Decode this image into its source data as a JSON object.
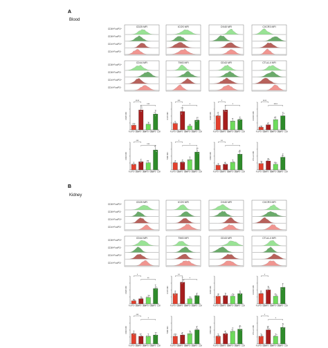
{
  "panels": [
    {
      "letter": "A",
      "tissue": "Blood",
      "rows": [
        "CD8⁺FoxP3⁺",
        "CD8⁺FoxP3⁻",
        "CD4⁺FoxP3⁺",
        "CD4⁺FoxP3⁻"
      ],
      "histograms": [
        "CD25 MFI",
        "ICOS MFI",
        "OX40 MFI",
        "CXCR3 MFI",
        "CD44 MFI",
        "TIM3 MFI",
        "CD43 MFI",
        "CTLA-4 MFI"
      ],
      "bar_plots": [
        {
          "ylabel": "CD25 MFI",
          "sig": [
            "****",
            "***"
          ]
        },
        {
          "ylabel": "ICOS MFI",
          "sig": [
            "***",
            "*"
          ]
        },
        {
          "ylabel": "OX40 MFI",
          "sig": [
            "*",
            "*"
          ]
        },
        {
          "ylabel": "CXCR3 MFI",
          "sig": [
            "****",
            "****"
          ]
        },
        {
          "ylabel": "CD44 MFI",
          "sig": [
            "***",
            "***"
          ]
        },
        {
          "ylabel": "TIM3 MFI",
          "sig": [
            "*",
            "*"
          ]
        },
        {
          "ylabel": "CD43 MFI",
          "sig": [
            "**",
            "*"
          ]
        },
        {
          "ylabel": "CTLA-4 MFI",
          "sig": []
        }
      ]
    },
    {
      "letter": "B",
      "tissue": "Kidney",
      "rows": [
        "CD8⁺FoxP3⁺",
        "CD8⁺FoxP3⁻",
        "CD4⁺FoxP3⁺",
        "CD4⁺FoxP3⁻"
      ],
      "histograms": [
        "CD25 MFI",
        "ICOS MFI",
        "OX40 MFI",
        "CXCR3 MFI",
        "CD44 MFI",
        "TIM3 MFI",
        "CD43 MFI",
        "CTLA-4 MFI"
      ],
      "bar_plots": [
        {
          "ylabel": "CD25 MFI",
          "sig": [
            "*",
            "**"
          ]
        },
        {
          "ylabel": "ICOS MFI",
          "sig": [
            "**",
            "*"
          ]
        },
        {
          "ylabel": "OX40 MFI",
          "sig": []
        },
        {
          "ylabel": "CXCR3 MFI",
          "sig": [
            "*"
          ]
        },
        {
          "ylabel": "CD44 MFI",
          "sig": [
            "***",
            "*"
          ]
        },
        {
          "ylabel": "TIM3 MFI",
          "sig": []
        },
        {
          "ylabel": "CD43 MFI",
          "sig": []
        },
        {
          "ylabel": "CTLA-4 MFI",
          "sig": [
            "*",
            "*"
          ]
        }
      ]
    }
  ],
  "group_labels": [
    "FoxP3+ CD4",
    "FoxP3- CD4",
    "FoxP3+ CD8",
    "FoxP3- CD8"
  ],
  "colors": {
    "cd4_pos": "#e3402d",
    "cd4_neg": "#a61d1d",
    "cd8_pos": "#6ddc5a",
    "cd8_neg": "#2e8b2a",
    "hist_red": "#f08a84",
    "hist_green": "#8fe08a",
    "hist_darkred": "#b0504a",
    "hist_darkgreen": "#5aa35a"
  },
  "chart_data": [
    {
      "type": "bar",
      "panel": "A",
      "ylabel": "CD25 MFI",
      "categories": [
        "FoxP3+ CD4",
        "FoxP3- CD4",
        "FoxP3+ CD8",
        "FoxP3- CD8"
      ],
      "values": [
        0.18,
        0.78,
        0.22,
        0.62
      ]
    },
    {
      "type": "bar",
      "panel": "A",
      "ylabel": "ICOS MFI",
      "categories": [
        "FoxP3+ CD4",
        "FoxP3- CD4",
        "FoxP3+ CD8",
        "FoxP3- CD8"
      ],
      "values": [
        0.25,
        0.72,
        0.15,
        0.38
      ]
    },
    {
      "type": "bar",
      "panel": "A",
      "ylabel": "OX40 MFI",
      "categories": [
        "FoxP3+ CD4",
        "FoxP3- CD4",
        "FoxP3+ CD8",
        "FoxP3- CD8"
      ],
      "values": [
        0.55,
        0.78,
        0.35,
        0.4
      ]
    },
    {
      "type": "bar",
      "panel": "A",
      "ylabel": "CXCR3 MFI",
      "categories": [
        "FoxP3+ CD4",
        "FoxP3- CD4",
        "FoxP3+ CD8",
        "FoxP3- CD8"
      ],
      "values": [
        0.1,
        0.2,
        0.4,
        0.55
      ]
    },
    {
      "type": "bar",
      "panel": "A",
      "ylabel": "CD44 MFI",
      "categories": [
        "FoxP3+ CD4",
        "FoxP3- CD4",
        "FoxP3+ CD8",
        "FoxP3- CD8"
      ],
      "values": [
        0.22,
        0.32,
        0.28,
        0.78
      ]
    },
    {
      "type": "bar",
      "panel": "A",
      "ylabel": "TIM3 MFI",
      "categories": [
        "FoxP3+ CD4",
        "FoxP3- CD4",
        "FoxP3+ CD8",
        "FoxP3- CD8"
      ],
      "values": [
        0.28,
        0.3,
        0.4,
        0.7
      ]
    },
    {
      "type": "bar",
      "panel": "A",
      "ylabel": "CD43 MFI",
      "categories": [
        "FoxP3+ CD4",
        "FoxP3- CD4",
        "FoxP3+ CD8",
        "FoxP3- CD8"
      ],
      "values": [
        0.18,
        0.22,
        0.3,
        0.62
      ]
    },
    {
      "type": "bar",
      "panel": "A",
      "ylabel": "CTLA-4 MFI",
      "categories": [
        "FoxP3+ CD4",
        "FoxP3- CD4",
        "FoxP3+ CD8",
        "FoxP3- CD8"
      ],
      "values": [
        0.25,
        0.35,
        0.22,
        0.5
      ]
    },
    {
      "type": "bar",
      "panel": "B",
      "ylabel": "CD25 MFI",
      "categories": [
        "FoxP3+ CD4",
        "FoxP3- CD4",
        "FoxP3+ CD8",
        "FoxP3- CD8"
      ],
      "values": [
        0.12,
        0.2,
        0.25,
        0.6
      ]
    },
    {
      "type": "bar",
      "panel": "B",
      "ylabel": "ICOS MFI",
      "categories": [
        "FoxP3+ CD4",
        "FoxP3- CD4",
        "FoxP3+ CD8",
        "FoxP3- CD8"
      ],
      "values": [
        0.4,
        0.85,
        0.2,
        0.32
      ]
    },
    {
      "type": "bar",
      "panel": "B",
      "ylabel": "OX40 MFI",
      "categories": [
        "FoxP3+ CD4",
        "FoxP3- CD4",
        "FoxP3+ CD8",
        "FoxP3- CD8"
      ],
      "values": [
        0.3,
        0.32,
        0.3,
        0.4
      ]
    },
    {
      "type": "bar",
      "panel": "B",
      "ylabel": "CXCR3 MFI",
      "categories": [
        "FoxP3+ CD4",
        "FoxP3- CD4",
        "FoxP3+ CD8",
        "FoxP3- CD8"
      ],
      "values": [
        0.4,
        0.55,
        0.3,
        0.65
      ]
    },
    {
      "type": "bar",
      "panel": "B",
      "ylabel": "CD44 MFI",
      "categories": [
        "FoxP3+ CD4",
        "FoxP3- CD4",
        "FoxP3+ CD8",
        "FoxP3- CD8"
      ],
      "values": [
        0.4,
        0.3,
        0.3,
        0.35
      ]
    },
    {
      "type": "bar",
      "panel": "B",
      "ylabel": "TIM3 MFI",
      "categories": [
        "FoxP3+ CD4",
        "FoxP3- CD4",
        "FoxP3+ CD8",
        "FoxP3- CD8"
      ],
      "values": [
        0.3,
        0.35,
        0.4,
        0.55
      ]
    },
    {
      "type": "bar",
      "panel": "B",
      "ylabel": "CD43 MFI",
      "categories": [
        "FoxP3+ CD4",
        "FoxP3- CD4",
        "FoxP3+ CD8",
        "FoxP3- CD8"
      ],
      "values": [
        0.3,
        0.4,
        0.5,
        0.58
      ]
    },
    {
      "type": "bar",
      "panel": "B",
      "ylabel": "CTLA-4 MFI",
      "categories": [
        "FoxP3+ CD4",
        "FoxP3- CD4",
        "FoxP3+ CD8",
        "FoxP3- CD8"
      ],
      "values": [
        0.3,
        0.55,
        0.3,
        0.65
      ]
    }
  ]
}
